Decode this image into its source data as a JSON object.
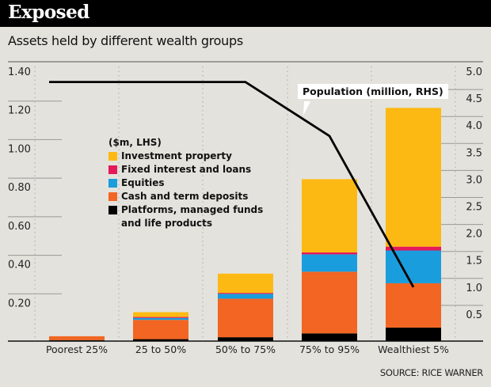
{
  "header": {
    "title": "Exposed"
  },
  "subtitle": "Assets held by different wealth groups",
  "source": "SOURCE: RICE WARNER",
  "chart_data": {
    "type": "bar",
    "stacked": true,
    "title": "Assets held by different wealth groups",
    "categories": [
      "Poorest 25%",
      "25 to 50%",
      "50% to 75%",
      "75% to 95%",
      "Wealthiest 5%"
    ],
    "series": [
      {
        "name": "Platforms, managed funds and life products",
        "color": "#000000",
        "values": [
          0.005,
          0.01,
          0.02,
          0.04,
          0.07
        ]
      },
      {
        "name": "Cash and term deposits",
        "color": "#f26522",
        "values": [
          0.02,
          0.1,
          0.2,
          0.32,
          0.23
        ]
      },
      {
        "name": "Equities",
        "color": "#1a9ddc",
        "values": [
          0.0,
          0.01,
          0.025,
          0.09,
          0.17
        ]
      },
      {
        "name": "Fixed interest and loans",
        "color": "#e4185a",
        "values": [
          0.0,
          0.005,
          0.005,
          0.01,
          0.02
        ]
      },
      {
        "name": "Investment property",
        "color": "#fdb913",
        "values": [
          0.0,
          0.025,
          0.1,
          0.38,
          0.72
        ]
      }
    ],
    "line_series": {
      "name": "Population (million, RHS)",
      "color": "#000000",
      "x_points": [
        0,
        1,
        2.0,
        3,
        4
      ],
      "values": [
        4.8,
        4.8,
        4.8,
        3.8,
        1.0
      ]
    },
    "legend_title": "($m, LHS)",
    "legend_order": [
      "Investment property",
      "Fixed interest and loans",
      "Equities",
      "Cash and term deposits",
      "Platforms, managed funds and life products"
    ],
    "legend_position": "center-left",
    "ylabel": "$m, LHS",
    "ylim": [
      0,
      1.4
    ],
    "yticks": [
      "0.20",
      "0.40",
      "0.60",
      "0.80",
      "1.00",
      "1.20",
      "1.40"
    ],
    "y2label": "Population (million, RHS)",
    "y2lim": [
      0,
      5.0
    ],
    "y2ticks": [
      "0.5",
      "1.0",
      "1.5",
      "2.0",
      "2.5",
      "3.0",
      "3.5",
      "4.0",
      "4.5",
      "5.0"
    ],
    "grid": true
  }
}
